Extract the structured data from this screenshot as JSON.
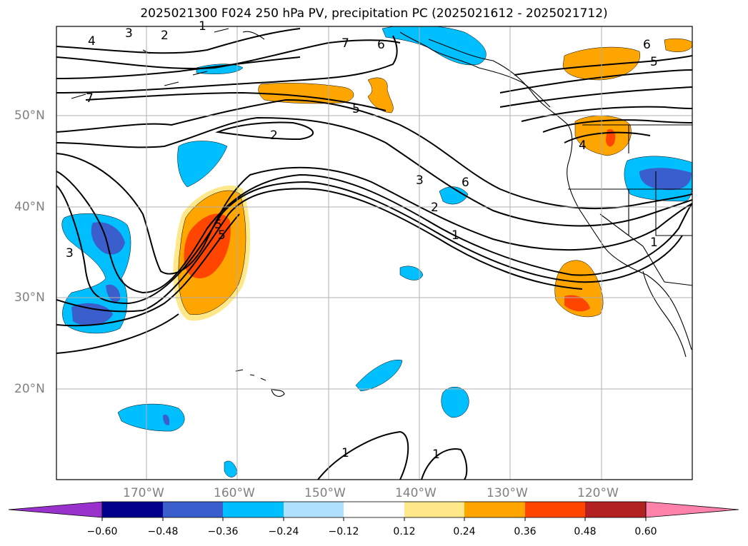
{
  "title": "2025021300 F024 250 hPa PV, precipitation PC (2025021612 - 2025021712)",
  "lat_labels": [
    "50°N",
    "40°N",
    "30°N",
    "20°N"
  ],
  "lon_labels": [
    "170°W",
    "160°W",
    "150°W",
    "140°W",
    "130°W",
    "120°W"
  ],
  "pv_contour_labels": [
    "4",
    "3",
    "2",
    "1",
    "7",
    "6",
    "5",
    "7",
    "5",
    "2",
    "3",
    "6",
    "2",
    "1",
    "5",
    "6",
    "5",
    "4",
    "3",
    "1",
    "1",
    "1"
  ],
  "colorbar": {
    "ticks": [
      "−0.60",
      "−0.48",
      "−0.36",
      "−0.24",
      "−0.12",
      "0.12",
      "0.24",
      "0.36",
      "0.48",
      "0.60"
    ],
    "colors": [
      "#9932cc",
      "#00008b",
      "#3a5fcd",
      "#00bfff",
      "#b0e2ff",
      "#ffffff",
      "#ffe88a",
      "#ffa500",
      "#ff4500",
      "#b22222",
      "#ff82ab"
    ]
  },
  "colors": {
    "neg_light": "#b0e2ff",
    "neg_mid": "#00bfff",
    "neg_strong": "#3a5fcd",
    "pos_light": "#ffe88a",
    "pos_mid": "#ffa500",
    "pos_strong": "#ff4500",
    "grid": "#b0b0b0",
    "axis_label": "#808080"
  }
}
